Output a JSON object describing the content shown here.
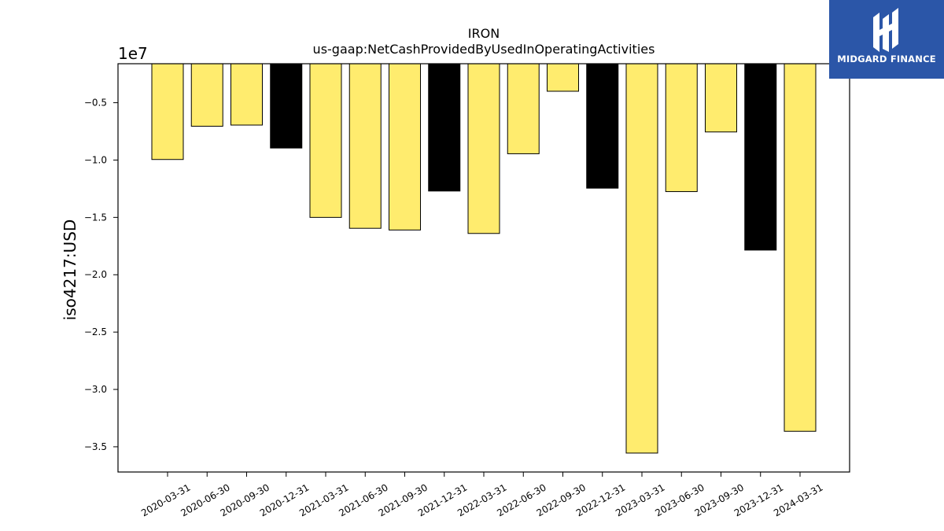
{
  "brand": {
    "name": "MIDGARD FINANCE",
    "logo_icon": "midgard-logo-icon",
    "background": "#2b56a8",
    "text_color": "#ffffff"
  },
  "chart_data": {
    "type": "bar",
    "title": "IRON",
    "subtitle": "us-gaap:NetCashProvidedByUsedInOperatingActivities",
    "ylabel": "iso4217:USD",
    "xlabel": "",
    "y_scale_label": "1e7",
    "y_multiplier": 10000000,
    "ylim": [
      -3.72,
      -0.16
    ],
    "y_ticks": [
      -0.5,
      -1.0,
      -1.5,
      -2.0,
      -2.5,
      -3.0,
      -3.5
    ],
    "y_tick_labels": [
      "−0.5",
      "−1.0",
      "−1.5",
      "−2.0",
      "−2.5",
      "−3.0",
      "−3.5"
    ],
    "grid": false,
    "legend": "none",
    "colors": {
      "q1_q3": "#ffec6e",
      "q4": "#000000",
      "edge": "#000000"
    },
    "categories": [
      "2020-03-31",
      "2020-06-30",
      "2020-09-30",
      "2020-12-31",
      "2021-03-31",
      "2021-06-30",
      "2021-09-30",
      "2021-12-31",
      "2022-03-31",
      "2022-06-30",
      "2022-09-30",
      "2022-12-31",
      "2023-03-31",
      "2023-06-30",
      "2023-09-30",
      "2023-12-31",
      "2024-03-31"
    ],
    "values": [
      -9950000,
      -7050000,
      -6950000,
      -8950000,
      -15000000,
      -15950000,
      -16100000,
      -12700000,
      -16400000,
      -9450000,
      -4000000,
      -12450000,
      -35550000,
      -12750000,
      -7550000,
      -17850000,
      -33650000
    ],
    "bar_colors": [
      "#ffec6e",
      "#ffec6e",
      "#ffec6e",
      "#000000",
      "#ffec6e",
      "#ffec6e",
      "#ffec6e",
      "#000000",
      "#ffec6e",
      "#ffec6e",
      "#ffec6e",
      "#000000",
      "#ffec6e",
      "#ffec6e",
      "#ffec6e",
      "#000000",
      "#ffec6e"
    ]
  }
}
